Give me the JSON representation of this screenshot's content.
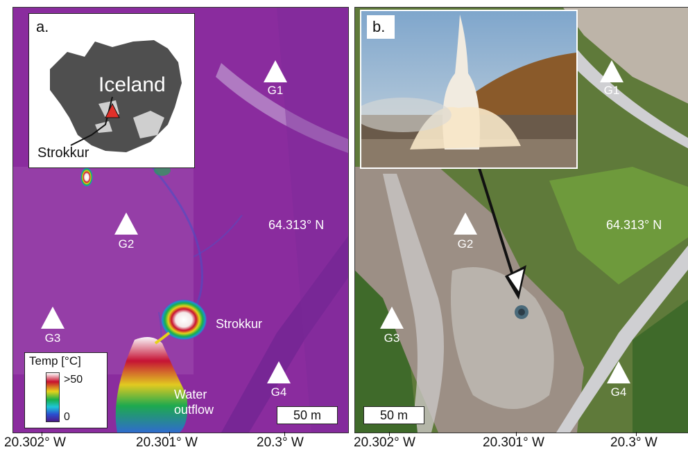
{
  "panel_a": {
    "letter": "a.",
    "inset": {
      "country": "Iceland",
      "site": "Strokkur"
    },
    "markers": [
      "G1",
      "G2",
      "G3",
      "G4"
    ],
    "latitude": "64.313° N",
    "strokkur_label": "Strokkur",
    "outflow_label": "Water outflow",
    "legend": {
      "title": "Temp [°C]",
      "max": ">50",
      "min": "0"
    },
    "scale_bar": "50 m"
  },
  "panel_b": {
    "letter": "b.",
    "markers": [
      "G1",
      "G2",
      "G3",
      "G4"
    ],
    "latitude": "64.313° N",
    "scale_bar": "50 m"
  },
  "x_axis": {
    "panel_a_ticks": [
      "20.302° W",
      "20.301° W",
      "20.3° W"
    ],
    "panel_b_ticks": [
      "20.302° W",
      "20.301° W",
      "20.3° W"
    ]
  },
  "colors": {
    "thermal_background": "#8a2c9e",
    "thermal_hot": "#ffffff",
    "marker": "#ffffff"
  }
}
